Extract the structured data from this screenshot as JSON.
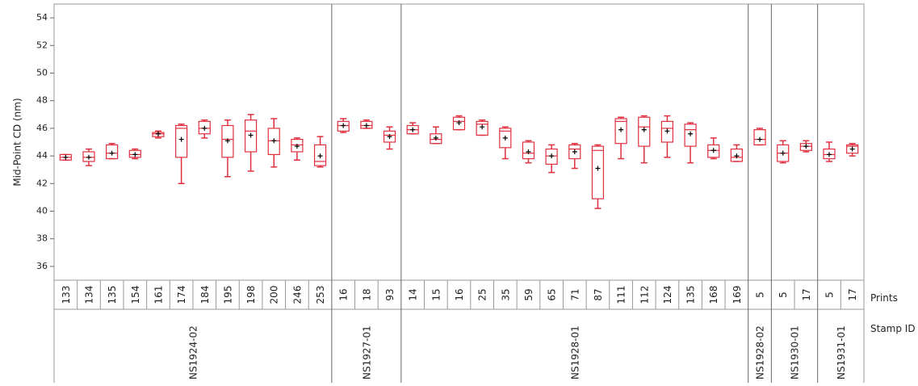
{
  "chart_data": {
    "type": "box",
    "y_label": "Mid-Point CD (nm)",
    "x_labels": [
      "Prints",
      "Stamp ID"
    ],
    "color": "#e0303f",
    "mean_color": "#000000",
    "ylim": [
      35,
      55
    ],
    "yticks": [
      36,
      38,
      40,
      42,
      44,
      46,
      48,
      50,
      52,
      54
    ],
    "groups": [
      {
        "name": "NS1924-02",
        "categories": [
          "133",
          "134",
          "135",
          "154",
          "161",
          "174",
          "184",
          "195",
          "198",
          "200",
          "246",
          "253"
        ],
        "boxes": [
          {
            "min": 43.7,
            "q1": 43.7,
            "median": 43.9,
            "q3": 44.1,
            "max": 44.1,
            "mean": 43.9
          },
          {
            "min": 43.3,
            "q1": 43.6,
            "median": 43.9,
            "q3": 44.3,
            "max": 44.5,
            "mean": 43.9
          },
          {
            "min": 43.8,
            "q1": 43.8,
            "median": 44.2,
            "q3": 44.8,
            "max": 44.9,
            "mean": 44.2
          },
          {
            "min": 43.8,
            "q1": 43.9,
            "median": 44.1,
            "q3": 44.4,
            "max": 44.5,
            "mean": 44.1
          },
          {
            "min": 45.3,
            "q1": 45.4,
            "median": 45.6,
            "q3": 45.7,
            "max": 45.8,
            "mean": 45.6
          },
          {
            "min": 42.0,
            "q1": 43.9,
            "median": 46.0,
            "q3": 46.2,
            "max": 46.3,
            "mean": 45.2
          },
          {
            "min": 45.3,
            "q1": 45.6,
            "median": 46.0,
            "q3": 46.5,
            "max": 46.6,
            "mean": 46.0
          },
          {
            "min": 42.5,
            "q1": 43.9,
            "median": 45.2,
            "q3": 46.2,
            "max": 46.6,
            "mean": 45.1
          },
          {
            "min": 42.9,
            "q1": 44.3,
            "median": 45.8,
            "q3": 46.6,
            "max": 47.0,
            "mean": 45.5
          },
          {
            "min": 43.2,
            "q1": 44.1,
            "median": 45.1,
            "q3": 46.0,
            "max": 46.7,
            "mean": 45.1
          },
          {
            "min": 43.7,
            "q1": 44.3,
            "median": 44.8,
            "q3": 45.2,
            "max": 45.3,
            "mean": 44.7
          },
          {
            "min": 43.2,
            "q1": 43.3,
            "median": 43.6,
            "q3": 44.8,
            "max": 45.4,
            "mean": 44.0
          }
        ]
      },
      {
        "name": "NS1927-01",
        "categories": [
          "16",
          "18",
          "93"
        ],
        "boxes": [
          {
            "min": 45.7,
            "q1": 45.8,
            "median": 46.2,
            "q3": 46.5,
            "max": 46.7,
            "mean": 46.2
          },
          {
            "min": 46.0,
            "q1": 46.0,
            "median": 46.2,
            "q3": 46.5,
            "max": 46.6,
            "mean": 46.2
          },
          {
            "min": 44.5,
            "q1": 45.0,
            "median": 45.5,
            "q3": 45.8,
            "max": 46.1,
            "mean": 45.4
          }
        ]
      },
      {
        "name": "NS1928-01",
        "categories": [
          "14",
          "15",
          "16",
          "25",
          "35",
          "59",
          "65",
          "71",
          "87",
          "111",
          "112",
          "124",
          "135",
          "168",
          "169"
        ],
        "boxes": [
          {
            "min": 45.6,
            "q1": 45.6,
            "median": 45.9,
            "q3": 46.2,
            "max": 46.4,
            "mean": 45.9
          },
          {
            "min": 44.9,
            "q1": 44.9,
            "median": 45.2,
            "q3": 45.6,
            "max": 46.1,
            "mean": 45.3
          },
          {
            "min": 45.9,
            "q1": 45.9,
            "median": 46.5,
            "q3": 46.8,
            "max": 46.9,
            "mean": 46.4
          },
          {
            "min": 45.5,
            "q1": 45.5,
            "median": 46.3,
            "q3": 46.5,
            "max": 46.6,
            "mean": 46.1
          },
          {
            "min": 43.8,
            "q1": 44.6,
            "median": 45.8,
            "q3": 46.0,
            "max": 46.1,
            "mean": 45.3
          },
          {
            "min": 43.5,
            "q1": 43.8,
            "median": 44.2,
            "q3": 45.0,
            "max": 45.1,
            "mean": 44.3
          },
          {
            "min": 42.8,
            "q1": 43.4,
            "median": 44.0,
            "q3": 44.5,
            "max": 44.8,
            "mean": 44.0
          },
          {
            "min": 43.1,
            "q1": 43.8,
            "median": 44.5,
            "q3": 44.8,
            "max": 44.9,
            "mean": 44.3
          },
          {
            "min": 40.2,
            "q1": 40.9,
            "median": 44.4,
            "q3": 44.7,
            "max": 44.8,
            "mean": 43.1
          },
          {
            "min": 43.8,
            "q1": 44.9,
            "median": 46.5,
            "q3": 46.7,
            "max": 46.8,
            "mean": 45.9
          },
          {
            "min": 43.5,
            "q1": 44.7,
            "median": 46.1,
            "q3": 46.8,
            "max": 46.9,
            "mean": 45.9
          },
          {
            "min": 43.9,
            "q1": 45.0,
            "median": 46.0,
            "q3": 46.5,
            "max": 46.9,
            "mean": 45.8
          },
          {
            "min": 43.5,
            "q1": 44.7,
            "median": 45.9,
            "q3": 46.3,
            "max": 46.4,
            "mean": 45.6
          },
          {
            "min": 43.8,
            "q1": 43.9,
            "median": 44.4,
            "q3": 44.8,
            "max": 45.3,
            "mean": 44.4
          },
          {
            "min": 43.6,
            "q1": 43.6,
            "median": 43.9,
            "q3": 44.5,
            "max": 44.8,
            "mean": 44.0
          }
        ]
      },
      {
        "name": "NS1928-02",
        "categories": [
          "5"
        ],
        "boxes": [
          {
            "min": 44.8,
            "q1": 44.8,
            "median": 45.2,
            "q3": 45.9,
            "max": 46.0,
            "mean": 45.2
          }
        ]
      },
      {
        "name": "NS1930-01",
        "categories": [
          "5",
          "17"
        ],
        "boxes": [
          {
            "min": 43.5,
            "q1": 43.6,
            "median": 44.2,
            "q3": 44.8,
            "max": 45.1,
            "mean": 44.2
          },
          {
            "min": 44.3,
            "q1": 44.4,
            "median": 44.7,
            "q3": 44.9,
            "max": 45.1,
            "mean": 44.7
          }
        ]
      },
      {
        "name": "NS1931-01",
        "categories": [
          "5",
          "17"
        ],
        "boxes": [
          {
            "min": 43.6,
            "q1": 43.8,
            "median": 44.1,
            "q3": 44.5,
            "max": 45.0,
            "mean": 44.1
          },
          {
            "min": 44.0,
            "q1": 44.2,
            "median": 44.7,
            "q3": 44.8,
            "max": 44.9,
            "mean": 44.5
          }
        ]
      }
    ]
  }
}
